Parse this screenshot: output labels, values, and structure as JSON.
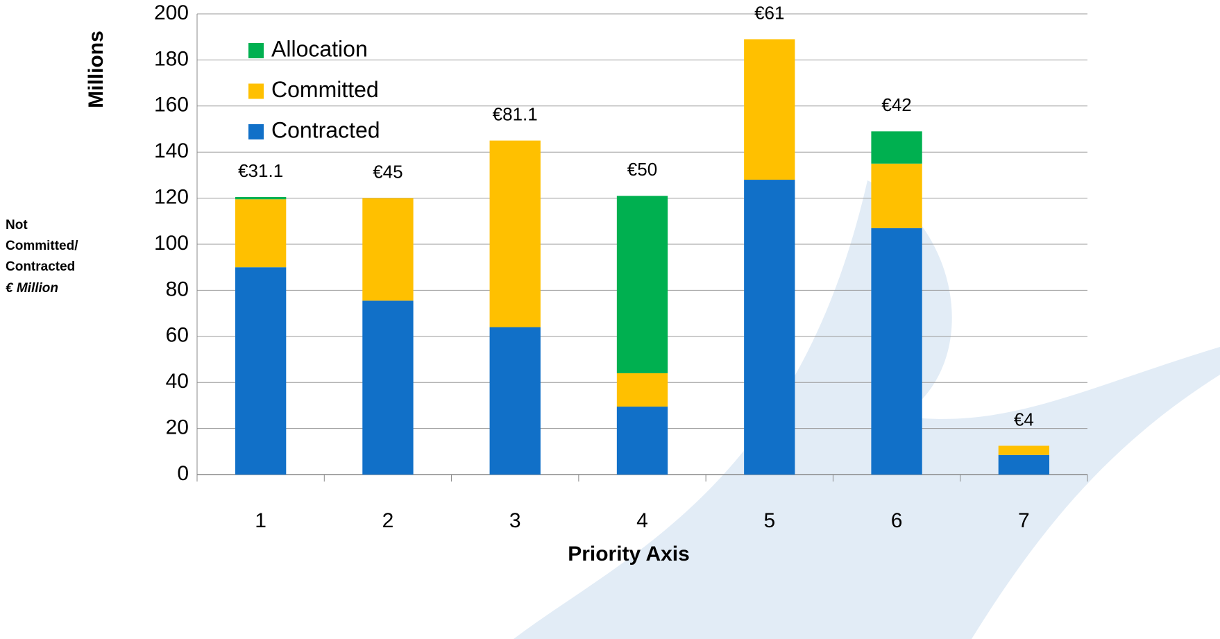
{
  "chart_data": {
    "type": "stacked_bar",
    "y_label": "Millions",
    "x_label": "Priority Axis",
    "side_label": [
      "Not",
      "Committed/",
      "Contracted",
      "€ Million"
    ],
    "categories": [
      "1",
      "2",
      "3",
      "4",
      "5",
      "6",
      "7"
    ],
    "series": [
      {
        "name": "Contracted",
        "color": "#1170c8",
        "values": [
          90,
          75.5,
          64,
          29.5,
          128,
          107,
          8.5
        ]
      },
      {
        "name": "Committed",
        "color": "#ffc000",
        "values": [
          29.5,
          44.5,
          81,
          14.5,
          61,
          28,
          4
        ]
      },
      {
        "name": "Allocation",
        "color": "#00b050",
        "values": [
          1,
          0,
          0,
          77,
          0,
          14,
          0
        ]
      }
    ],
    "annotations": [
      "€31.1",
      "€45",
      "€81.1",
      "€50",
      "€61",
      "€42",
      "€4"
    ],
    "ylim": [
      0,
      200
    ],
    "yticks": [
      0,
      20,
      40,
      60,
      80,
      100,
      120,
      140,
      160,
      180,
      200
    ],
    "grid": true,
    "legend": "top-left"
  }
}
